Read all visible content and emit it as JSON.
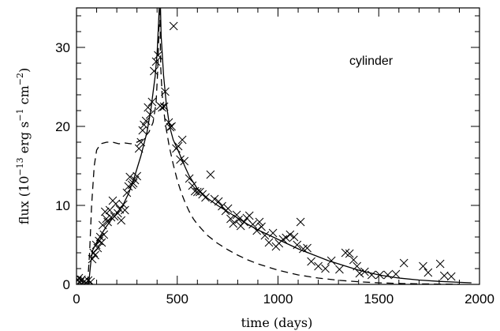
{
  "chart_data": {
    "type": "scatter",
    "title": "",
    "annotation": "cylinder",
    "xlabel": "time (days)",
    "ylabel": {
      "prefix": "flux (10",
      "exp1": "−13",
      "mid1": " erg s",
      "exp2": "−1",
      "mid2": " cm",
      "exp3": "−2",
      "suffix": ")"
    },
    "xlim": [
      0,
      2000
    ],
    "ylim": [
      0,
      35
    ],
    "xticks": [
      0,
      500,
      1000,
      1500,
      2000
    ],
    "yticks": [
      0,
      10,
      20,
      30
    ],
    "grid": false,
    "series": [
      {
        "style": "crosses",
        "points": [
          [
            5,
            0.5
          ],
          [
            12,
            0.8
          ],
          [
            18,
            0.3
          ],
          [
            25,
            0.6
          ],
          [
            32,
            0.2
          ],
          [
            40,
            0.4
          ],
          [
            48,
            0.2
          ],
          [
            58,
            0.5
          ],
          [
            70,
            0.3
          ],
          [
            78,
            3.2
          ],
          [
            85,
            4.0
          ],
          [
            92,
            3.7
          ],
          [
            98,
            5.0
          ],
          [
            105,
            4.6
          ],
          [
            112,
            5.5
          ],
          [
            118,
            6.0
          ],
          [
            125,
            5.3
          ],
          [
            130,
            7.5
          ],
          [
            136,
            6.3
          ],
          [
            142,
            9.2
          ],
          [
            148,
            8.3
          ],
          [
            155,
            7.9
          ],
          [
            165,
            9.4
          ],
          [
            172,
            8.5
          ],
          [
            180,
            10.6
          ],
          [
            188,
            8.6
          ],
          [
            195,
            10.2
          ],
          [
            205,
            9.0
          ],
          [
            215,
            9.5
          ],
          [
            222,
            8.1
          ],
          [
            232,
            10.1
          ],
          [
            240,
            9.4
          ],
          [
            250,
            11.6
          ],
          [
            258,
            12.4
          ],
          [
            265,
            13.6
          ],
          [
            275,
            12.6
          ],
          [
            282,
            12.8
          ],
          [
            290,
            13.2
          ],
          [
            300,
            13.7
          ],
          [
            310,
            17.2
          ],
          [
            320,
            18.0
          ],
          [
            328,
            19.5
          ],
          [
            335,
            20.2
          ],
          [
            345,
            20.7
          ],
          [
            355,
            22.4
          ],
          [
            365,
            21.5
          ],
          [
            375,
            23.1
          ],
          [
            385,
            27.0
          ],
          [
            395,
            28.2
          ],
          [
            405,
            29.0
          ],
          [
            415,
            22.6
          ],
          [
            425,
            22.4
          ],
          [
            435,
            22.5
          ],
          [
            440,
            24.4
          ],
          [
            458,
            20.5
          ],
          [
            465,
            19.9
          ],
          [
            472,
            20.0
          ],
          [
            482,
            32.7
          ],
          [
            495,
            17.2
          ],
          [
            505,
            17.5
          ],
          [
            515,
            15.8
          ],
          [
            525,
            18.3
          ],
          [
            535,
            15.6
          ],
          [
            560,
            13.4
          ],
          [
            575,
            12.5
          ],
          [
            588,
            11.8
          ],
          [
            600,
            11.7
          ],
          [
            612,
            11.7
          ],
          [
            625,
            11.4
          ],
          [
            640,
            11.0
          ],
          [
            665,
            13.9
          ],
          [
            685,
            10.8
          ],
          [
            705,
            10.5
          ],
          [
            722,
            9.9
          ],
          [
            740,
            9.3
          ],
          [
            752,
            9.6
          ],
          [
            765,
            8.3
          ],
          [
            778,
            7.7
          ],
          [
            795,
            8.8
          ],
          [
            805,
            8.2
          ],
          [
            815,
            7.4
          ],
          [
            832,
            7.9
          ],
          [
            845,
            8.4
          ],
          [
            858,
            8.7
          ],
          [
            875,
            7.6
          ],
          [
            895,
            6.8
          ],
          [
            908,
            7.9
          ],
          [
            918,
            7.3
          ],
          [
            935,
            6.2
          ],
          [
            955,
            5.3
          ],
          [
            975,
            6.5
          ],
          [
            990,
            4.8
          ],
          [
            1005,
            5.2
          ],
          [
            1025,
            5.7
          ],
          [
            1040,
            5.9
          ],
          [
            1060,
            6.3
          ],
          [
            1080,
            6.0
          ],
          [
            1095,
            5.0
          ],
          [
            1112,
            7.9
          ],
          [
            1125,
            4.5
          ],
          [
            1145,
            4.6
          ],
          [
            1165,
            2.9
          ],
          [
            1200,
            2.3
          ],
          [
            1235,
            2.0
          ],
          [
            1265,
            3.0
          ],
          [
            1305,
            1.9
          ],
          [
            1335,
            4.0
          ],
          [
            1355,
            3.9
          ],
          [
            1375,
            3.1
          ],
          [
            1392,
            2.3
          ],
          [
            1405,
            1.4
          ],
          [
            1430,
            1.6
          ],
          [
            1465,
            1.2
          ],
          [
            1505,
            1.2
          ],
          [
            1545,
            1.2
          ],
          [
            1585,
            1.3
          ],
          [
            1625,
            2.7
          ],
          [
            1720,
            2.3
          ],
          [
            1745,
            1.5
          ],
          [
            1805,
            2.6
          ],
          [
            1825,
            1.1
          ],
          [
            1860,
            1.0
          ]
        ]
      },
      {
        "style": "solid",
        "points": [
          [
            0,
            0
          ],
          [
            60,
            0
          ],
          [
            72,
            3.0
          ],
          [
            80,
            4.3
          ],
          [
            100,
            5.3
          ],
          [
            120,
            6.2
          ],
          [
            150,
            7.4
          ],
          [
            180,
            8.4
          ],
          [
            200,
            9.0
          ],
          [
            230,
            10.0
          ],
          [
            260,
            11.6
          ],
          [
            290,
            13.8
          ],
          [
            320,
            16.3
          ],
          [
            350,
            19.3
          ],
          [
            370,
            22.3
          ],
          [
            390,
            26.3
          ],
          [
            400,
            29.2
          ],
          [
            408,
            33.5
          ],
          [
            412,
            36.0
          ],
          [
            416,
            36.0
          ],
          [
            420,
            31.5
          ],
          [
            432,
            26.5
          ],
          [
            445,
            23.0
          ],
          [
            462,
            20.0
          ],
          [
            480,
            18.3
          ],
          [
            500,
            17.2
          ],
          [
            520,
            16.0
          ],
          [
            540,
            14.8
          ],
          [
            560,
            13.7
          ],
          [
            580,
            12.9
          ],
          [
            600,
            12.1
          ],
          [
            650,
            10.9
          ],
          [
            700,
            10.0
          ],
          [
            750,
            9.2
          ],
          [
            800,
            8.4
          ],
          [
            850,
            7.6
          ],
          [
            900,
            6.9
          ],
          [
            950,
            6.3
          ],
          [
            1000,
            5.7
          ],
          [
            1050,
            5.1
          ],
          [
            1100,
            4.5
          ],
          [
            1150,
            4.0
          ],
          [
            1200,
            3.5
          ],
          [
            1250,
            3.0
          ],
          [
            1300,
            2.6
          ],
          [
            1350,
            2.2
          ],
          [
            1400,
            1.8
          ],
          [
            1450,
            1.5
          ],
          [
            1500,
            1.2
          ],
          [
            1600,
            0.8
          ],
          [
            1700,
            0.55
          ],
          [
            1800,
            0.38
          ],
          [
            1900,
            0.26
          ],
          [
            1960,
            0.2
          ]
        ]
      },
      {
        "style": "dashed",
        "points": [
          [
            0,
            0
          ],
          [
            55,
            0
          ],
          [
            65,
            4.0
          ],
          [
            75,
            10.0
          ],
          [
            88,
            15.0
          ],
          [
            100,
            17.0
          ],
          [
            120,
            17.8
          ],
          [
            150,
            18.0
          ],
          [
            180,
            18.0
          ],
          [
            210,
            17.8
          ],
          [
            240,
            17.9
          ],
          [
            270,
            17.8
          ],
          [
            300,
            18.0
          ],
          [
            330,
            18.4
          ],
          [
            360,
            19.3
          ],
          [
            380,
            20.5
          ],
          [
            395,
            23.0
          ],
          [
            403,
            27.0
          ],
          [
            408,
            31.0
          ],
          [
            411,
            35.0
          ],
          [
            414,
            34.0
          ],
          [
            418,
            27.5
          ],
          [
            425,
            24.0
          ],
          [
            440,
            20.5
          ],
          [
            460,
            17.5
          ],
          [
            480,
            15.2
          ],
          [
            500,
            13.2
          ],
          [
            520,
            11.6
          ],
          [
            540,
            10.3
          ],
          [
            560,
            9.2
          ],
          [
            580,
            8.3
          ],
          [
            600,
            7.6
          ],
          [
            650,
            6.2
          ],
          [
            700,
            5.2
          ],
          [
            750,
            4.4
          ],
          [
            800,
            3.7
          ],
          [
            850,
            3.1
          ],
          [
            900,
            2.6
          ],
          [
            950,
            2.2
          ],
          [
            1000,
            1.8
          ],
          [
            1050,
            1.5
          ],
          [
            1100,
            1.2
          ],
          [
            1150,
            1.0
          ],
          [
            1200,
            0.8
          ],
          [
            1300,
            0.52
          ],
          [
            1400,
            0.33
          ],
          [
            1500,
            0.2
          ],
          [
            1600,
            0.12
          ],
          [
            1700,
            0.07
          ],
          [
            1800,
            0.04
          ],
          [
            1900,
            0.02
          ]
        ]
      }
    ]
  }
}
